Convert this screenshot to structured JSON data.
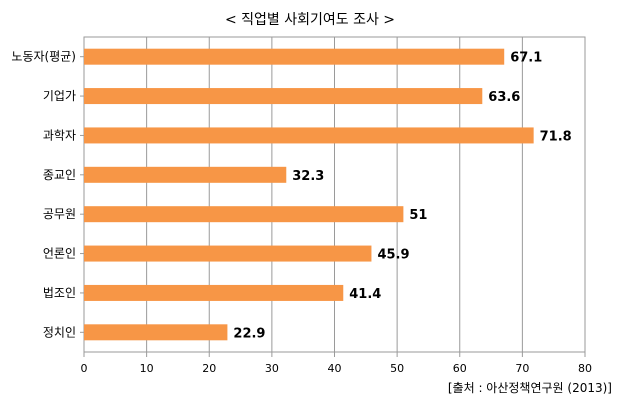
{
  "chart_data": {
    "type": "bar",
    "orientation": "horizontal",
    "title": "< 직업별 사회기여도 조사 >",
    "categories": [
      "노동자(평균)",
      "기업가",
      "과학자",
      "종교인",
      "공무원",
      "언론인",
      "법조인",
      "정치인"
    ],
    "values": [
      67.1,
      63.6,
      71.8,
      32.3,
      51,
      45.9,
      41.4,
      22.9
    ],
    "value_labels": [
      "67.1",
      "63.6",
      "71.8",
      "32.3",
      "51",
      "45.9",
      "41.4",
      "22.9"
    ],
    "xlim": [
      0,
      80
    ],
    "xticks": [
      "0",
      "10",
      "20",
      "30",
      "40",
      "50",
      "60",
      "70",
      "80"
    ],
    "xlabel": "",
    "ylabel": "",
    "grid": true,
    "bar_color": "#F79646",
    "source": "[출처 : 아산정책연구원 (2013)]"
  }
}
